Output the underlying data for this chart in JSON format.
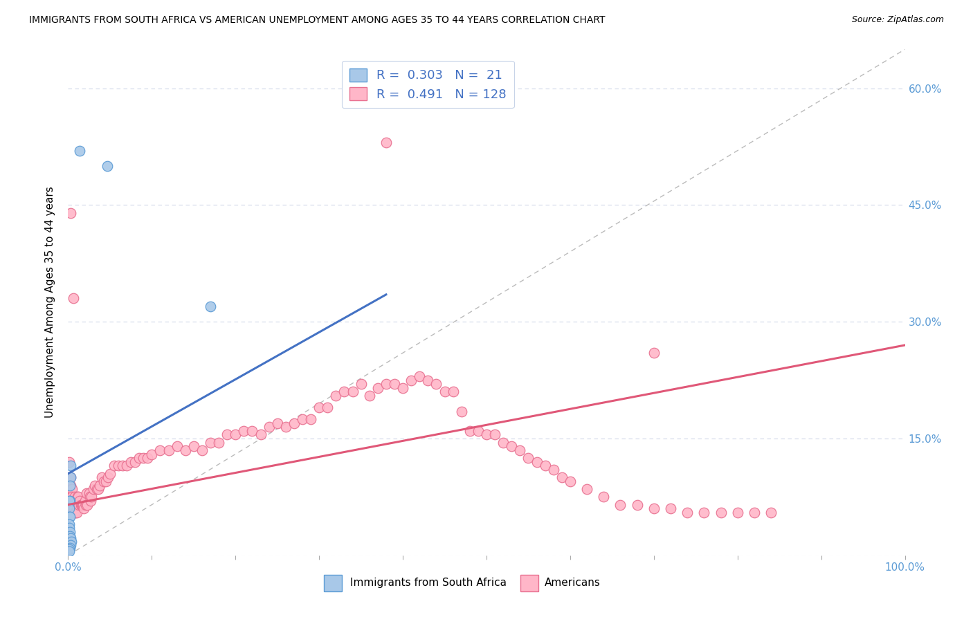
{
  "title": "IMMIGRANTS FROM SOUTH AFRICA VS AMERICAN UNEMPLOYMENT AMONG AGES 35 TO 44 YEARS CORRELATION CHART",
  "source": "Source: ZipAtlas.com",
  "ylabel": "Unemployment Among Ages 35 to 44 years",
  "xlim": [
    0,
    1.0
  ],
  "ylim": [
    0,
    0.65
  ],
  "xtick_positions": [
    0.0,
    0.1,
    0.2,
    0.3,
    0.4,
    0.5,
    0.6,
    0.7,
    0.8,
    0.9,
    1.0
  ],
  "xticklabels": [
    "0.0%",
    "",
    "",
    "",
    "",
    "",
    "",
    "",
    "",
    "",
    "100.0%"
  ],
  "ytick_positions": [
    0.0,
    0.15,
    0.3,
    0.45,
    0.6
  ],
  "yticklabels_right": [
    "",
    "15.0%",
    "30.0%",
    "45.0%",
    "60.0%"
  ],
  "color_blue_fill": "#a8c8e8",
  "color_blue_edge": "#5b9bd5",
  "color_blue_line": "#4472c4",
  "color_pink_fill": "#ffb6c8",
  "color_pink_edge": "#e87090",
  "color_pink_line": "#e05878",
  "color_dashed": "#bbbbbb",
  "color_grid": "#d0d8e8",
  "blue_line_x": [
    0.0,
    0.38
  ],
  "blue_line_y": [
    0.105,
    0.335
  ],
  "pink_line_x": [
    0.0,
    1.0
  ],
  "pink_line_y": [
    0.065,
    0.27
  ],
  "blue_scatter_x": [
    0.003,
    0.003,
    0.002,
    0.002,
    0.001,
    0.001,
    0.001,
    0.002,
    0.001,
    0.001,
    0.002,
    0.002,
    0.003,
    0.004,
    0.003,
    0.002,
    0.001,
    0.001,
    0.047,
    0.014,
    0.17
  ],
  "blue_scatter_y": [
    0.115,
    0.1,
    0.09,
    0.07,
    0.07,
    0.06,
    0.05,
    0.05,
    0.04,
    0.035,
    0.03,
    0.025,
    0.022,
    0.018,
    0.013,
    0.01,
    0.008,
    0.005,
    0.5,
    0.52,
    0.32
  ],
  "pink_scatter_x": [
    0.001,
    0.001,
    0.001,
    0.002,
    0.002,
    0.002,
    0.002,
    0.003,
    0.003,
    0.003,
    0.003,
    0.004,
    0.004,
    0.004,
    0.005,
    0.005,
    0.005,
    0.006,
    0.006,
    0.007,
    0.007,
    0.008,
    0.008,
    0.009,
    0.009,
    0.01,
    0.01,
    0.011,
    0.012,
    0.013,
    0.014,
    0.015,
    0.016,
    0.017,
    0.018,
    0.019,
    0.02,
    0.021,
    0.022,
    0.023,
    0.025,
    0.026,
    0.027,
    0.028,
    0.03,
    0.032,
    0.034,
    0.036,
    0.038,
    0.04,
    0.043,
    0.045,
    0.048,
    0.05,
    0.055,
    0.06,
    0.065,
    0.07,
    0.075,
    0.08,
    0.085,
    0.09,
    0.095,
    0.1,
    0.11,
    0.12,
    0.13,
    0.14,
    0.15,
    0.16,
    0.17,
    0.18,
    0.19,
    0.2,
    0.21,
    0.22,
    0.23,
    0.24,
    0.25,
    0.26,
    0.27,
    0.28,
    0.29,
    0.3,
    0.31,
    0.32,
    0.33,
    0.34,
    0.35,
    0.36,
    0.37,
    0.38,
    0.39,
    0.4,
    0.41,
    0.42,
    0.43,
    0.44,
    0.45,
    0.46,
    0.47,
    0.48,
    0.49,
    0.5,
    0.51,
    0.52,
    0.53,
    0.54,
    0.55,
    0.56,
    0.57,
    0.58,
    0.59,
    0.6,
    0.62,
    0.64,
    0.66,
    0.68,
    0.7,
    0.72,
    0.74,
    0.76,
    0.78,
    0.8,
    0.82,
    0.84,
    0.003,
    0.006,
    0.38,
    0.7
  ],
  "pink_scatter_y": [
    0.12,
    0.1,
    0.09,
    0.085,
    0.075,
    0.065,
    0.055,
    0.1,
    0.09,
    0.075,
    0.065,
    0.085,
    0.075,
    0.06,
    0.085,
    0.075,
    0.06,
    0.07,
    0.055,
    0.07,
    0.06,
    0.075,
    0.055,
    0.07,
    0.055,
    0.065,
    0.055,
    0.075,
    0.075,
    0.065,
    0.07,
    0.065,
    0.065,
    0.065,
    0.065,
    0.06,
    0.07,
    0.065,
    0.08,
    0.065,
    0.08,
    0.075,
    0.07,
    0.075,
    0.085,
    0.09,
    0.085,
    0.085,
    0.09,
    0.1,
    0.095,
    0.095,
    0.1,
    0.105,
    0.115,
    0.115,
    0.115,
    0.115,
    0.12,
    0.12,
    0.125,
    0.125,
    0.125,
    0.13,
    0.135,
    0.135,
    0.14,
    0.135,
    0.14,
    0.135,
    0.145,
    0.145,
    0.155,
    0.155,
    0.16,
    0.16,
    0.155,
    0.165,
    0.17,
    0.165,
    0.17,
    0.175,
    0.175,
    0.19,
    0.19,
    0.205,
    0.21,
    0.21,
    0.22,
    0.205,
    0.215,
    0.22,
    0.22,
    0.215,
    0.225,
    0.23,
    0.225,
    0.22,
    0.21,
    0.21,
    0.185,
    0.16,
    0.16,
    0.155,
    0.155,
    0.145,
    0.14,
    0.135,
    0.125,
    0.12,
    0.115,
    0.11,
    0.1,
    0.095,
    0.085,
    0.075,
    0.065,
    0.065,
    0.06,
    0.06,
    0.055,
    0.055,
    0.055,
    0.055,
    0.055,
    0.055,
    0.44,
    0.33,
    0.53,
    0.26
  ]
}
